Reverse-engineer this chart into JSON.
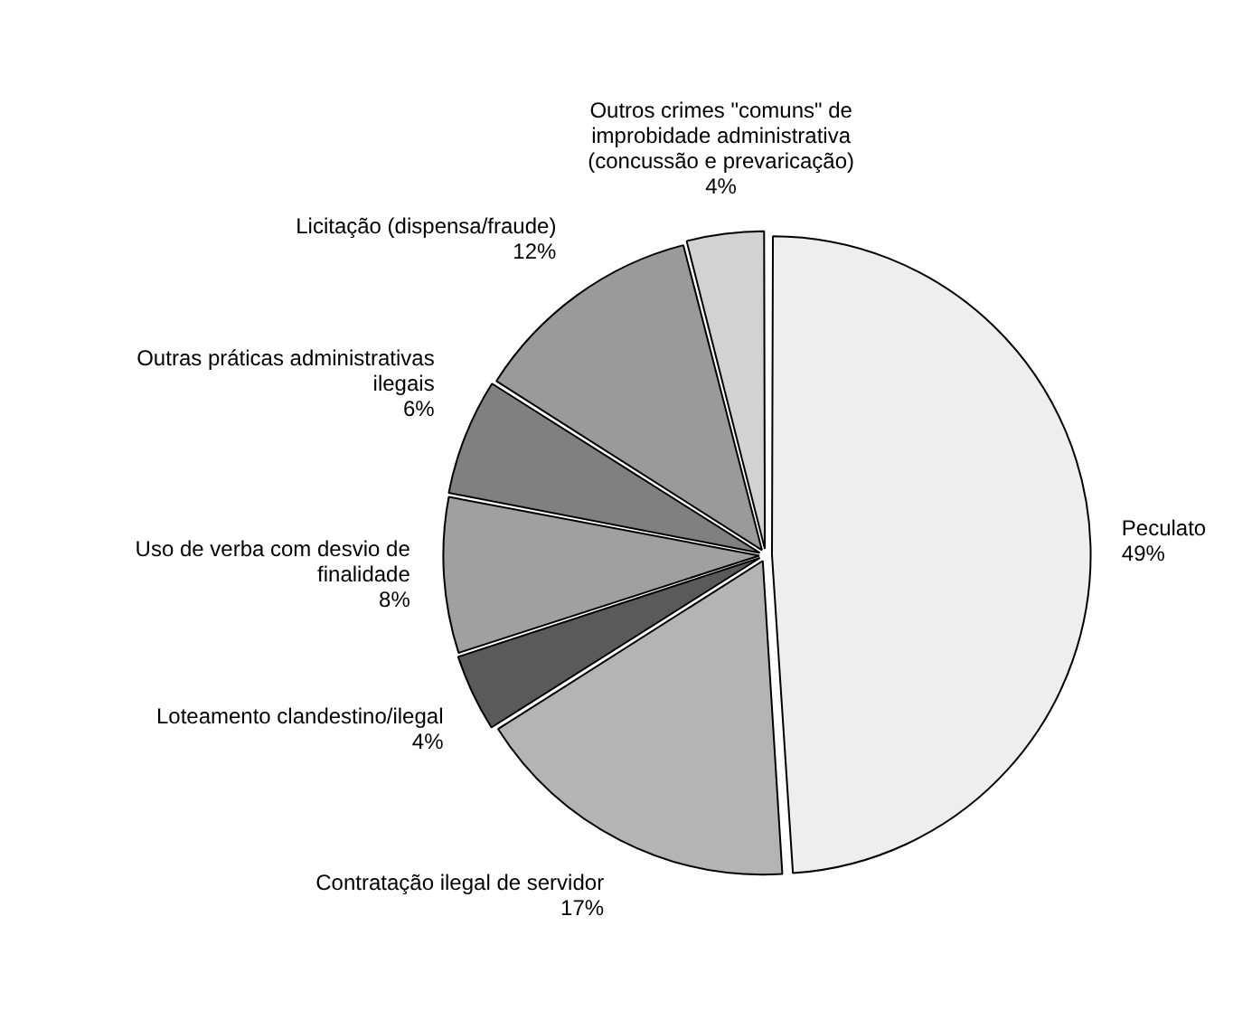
{
  "chart_data": {
    "type": "pie",
    "categories": [
      "Peculato",
      "Contratação ilegal de servidor",
      "Loteamento clandestino/ilegal",
      "Uso de verba com desvio de finalidade",
      "Outras práticas administrativas ilegais",
      "Licitação (dispensa/fraude)",
      "Outros crimes \"comuns\" de improbidade administrativa (concussão e prevaricação)"
    ],
    "values": [
      49,
      17,
      4,
      8,
      6,
      12,
      4
    ],
    "value_labels": [
      "49%",
      "17%",
      "4%",
      "8%",
      "6%",
      "12%",
      "4%"
    ],
    "colors": [
      "#eeeeee",
      "#b4b4b4",
      "#5a5a5a",
      "#a0a0a0",
      "#808080",
      "#9a9a9a",
      "#d2d2d2"
    ],
    "legend": false
  }
}
